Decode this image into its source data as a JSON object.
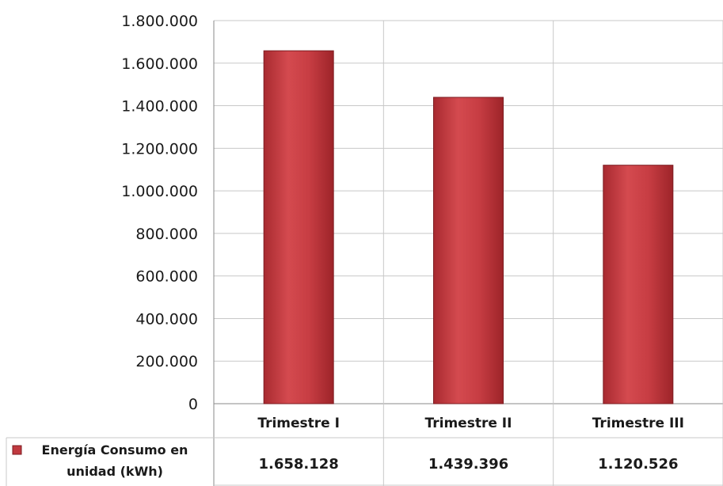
{
  "chart_data": {
    "type": "bar",
    "categories": [
      "Trimestre I",
      "Trimestre II",
      "Trimestre III"
    ],
    "series": [
      {
        "name": "Energía Consumo en unidad (kWh)",
        "values": [
          1658128,
          1439396,
          1120526
        ],
        "value_labels": [
          "1.658.128",
          "1.439.396",
          "1.120.526"
        ],
        "color": "#c0393f"
      }
    ],
    "y_ticks": [
      "0",
      "200.000",
      "400.000",
      "600.000",
      "800.000",
      "1.000.000",
      "1.200.000",
      "1.400.000",
      "1.600.000",
      "1.800.000"
    ],
    "ylim": [
      0,
      1800000
    ],
    "grid": true,
    "legend": "data-table-left",
    "title": "",
    "xlabel": "",
    "ylabel": ""
  }
}
